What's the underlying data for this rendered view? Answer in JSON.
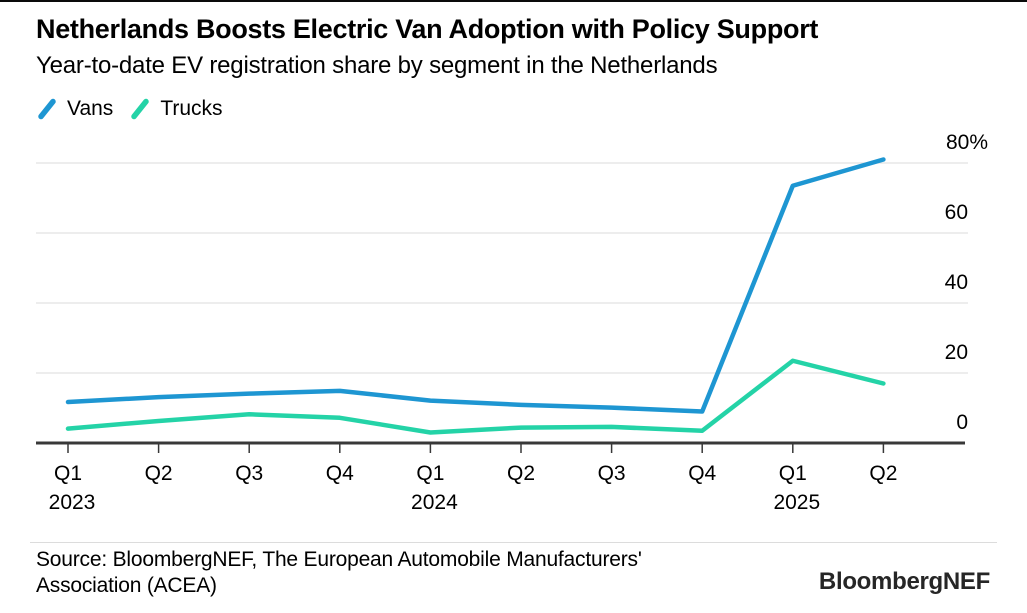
{
  "header": {
    "title": "Netherlands Boosts Electric Van Adoption with Policy Support",
    "subtitle": "Year-to-date EV registration share by segment in the Netherlands"
  },
  "legend": [
    {
      "label": "Vans",
      "color": "#1e96d2",
      "icon": "line-slash-icon"
    },
    {
      "label": "Trucks",
      "color": "#24d3a7",
      "icon": "line-slash-icon"
    }
  ],
  "chart_data": {
    "type": "line",
    "title": "Netherlands Boosts Electric Van Adoption with Policy Support",
    "subtitle": "Year-to-date EV registration share by segment in the Netherlands",
    "categories": [
      "Q1 2023",
      "Q2 2023",
      "Q3 2023",
      "Q4 2023",
      "Q1 2024",
      "Q2 2024",
      "Q3 2024",
      "Q4 2024",
      "Q1 2025",
      "Q2 2025"
    ],
    "x_tick_labels": [
      "Q1",
      "Q2",
      "Q3",
      "Q4",
      "Q1",
      "Q2",
      "Q3",
      "Q4",
      "Q1",
      "Q2"
    ],
    "year_labels": [
      {
        "text": "2023",
        "index": 0
      },
      {
        "text": "2024",
        "index": 4
      },
      {
        "text": "2025",
        "index": 8
      }
    ],
    "series": [
      {
        "name": "Vans",
        "color": "#1e96d2",
        "values": [
          11.7,
          13.1,
          14.1,
          14.9,
          12.1,
          10.9,
          10.1,
          9.0,
          73.5,
          81.0
        ]
      },
      {
        "name": "Trucks",
        "color": "#24d3a7",
        "values": [
          4.1,
          6.3,
          8.2,
          7.2,
          3.0,
          4.4,
          4.6,
          3.5,
          23.5,
          17.0
        ]
      }
    ],
    "xlabel": "",
    "ylabel": "",
    "ylabel_suffix": "%",
    "y_ticks": [
      0,
      20,
      40,
      60,
      80
    ],
    "ylim": [
      0,
      80
    ],
    "grid": "horizontal",
    "legend_position": "top-left",
    "y_axis_side": "right"
  },
  "footer": {
    "source_line1": "Source: BloombergNEF, The European Automobile Manufacturers'",
    "source_line2": "Association (ACEA)",
    "brand": "BloombergNEF"
  },
  "colors": {
    "vans": "#1e96d2",
    "trucks": "#24d3a7",
    "grid": "#e2e2e2",
    "axis": "#383838",
    "text": "#000000",
    "divider": "#dcdcdc"
  }
}
